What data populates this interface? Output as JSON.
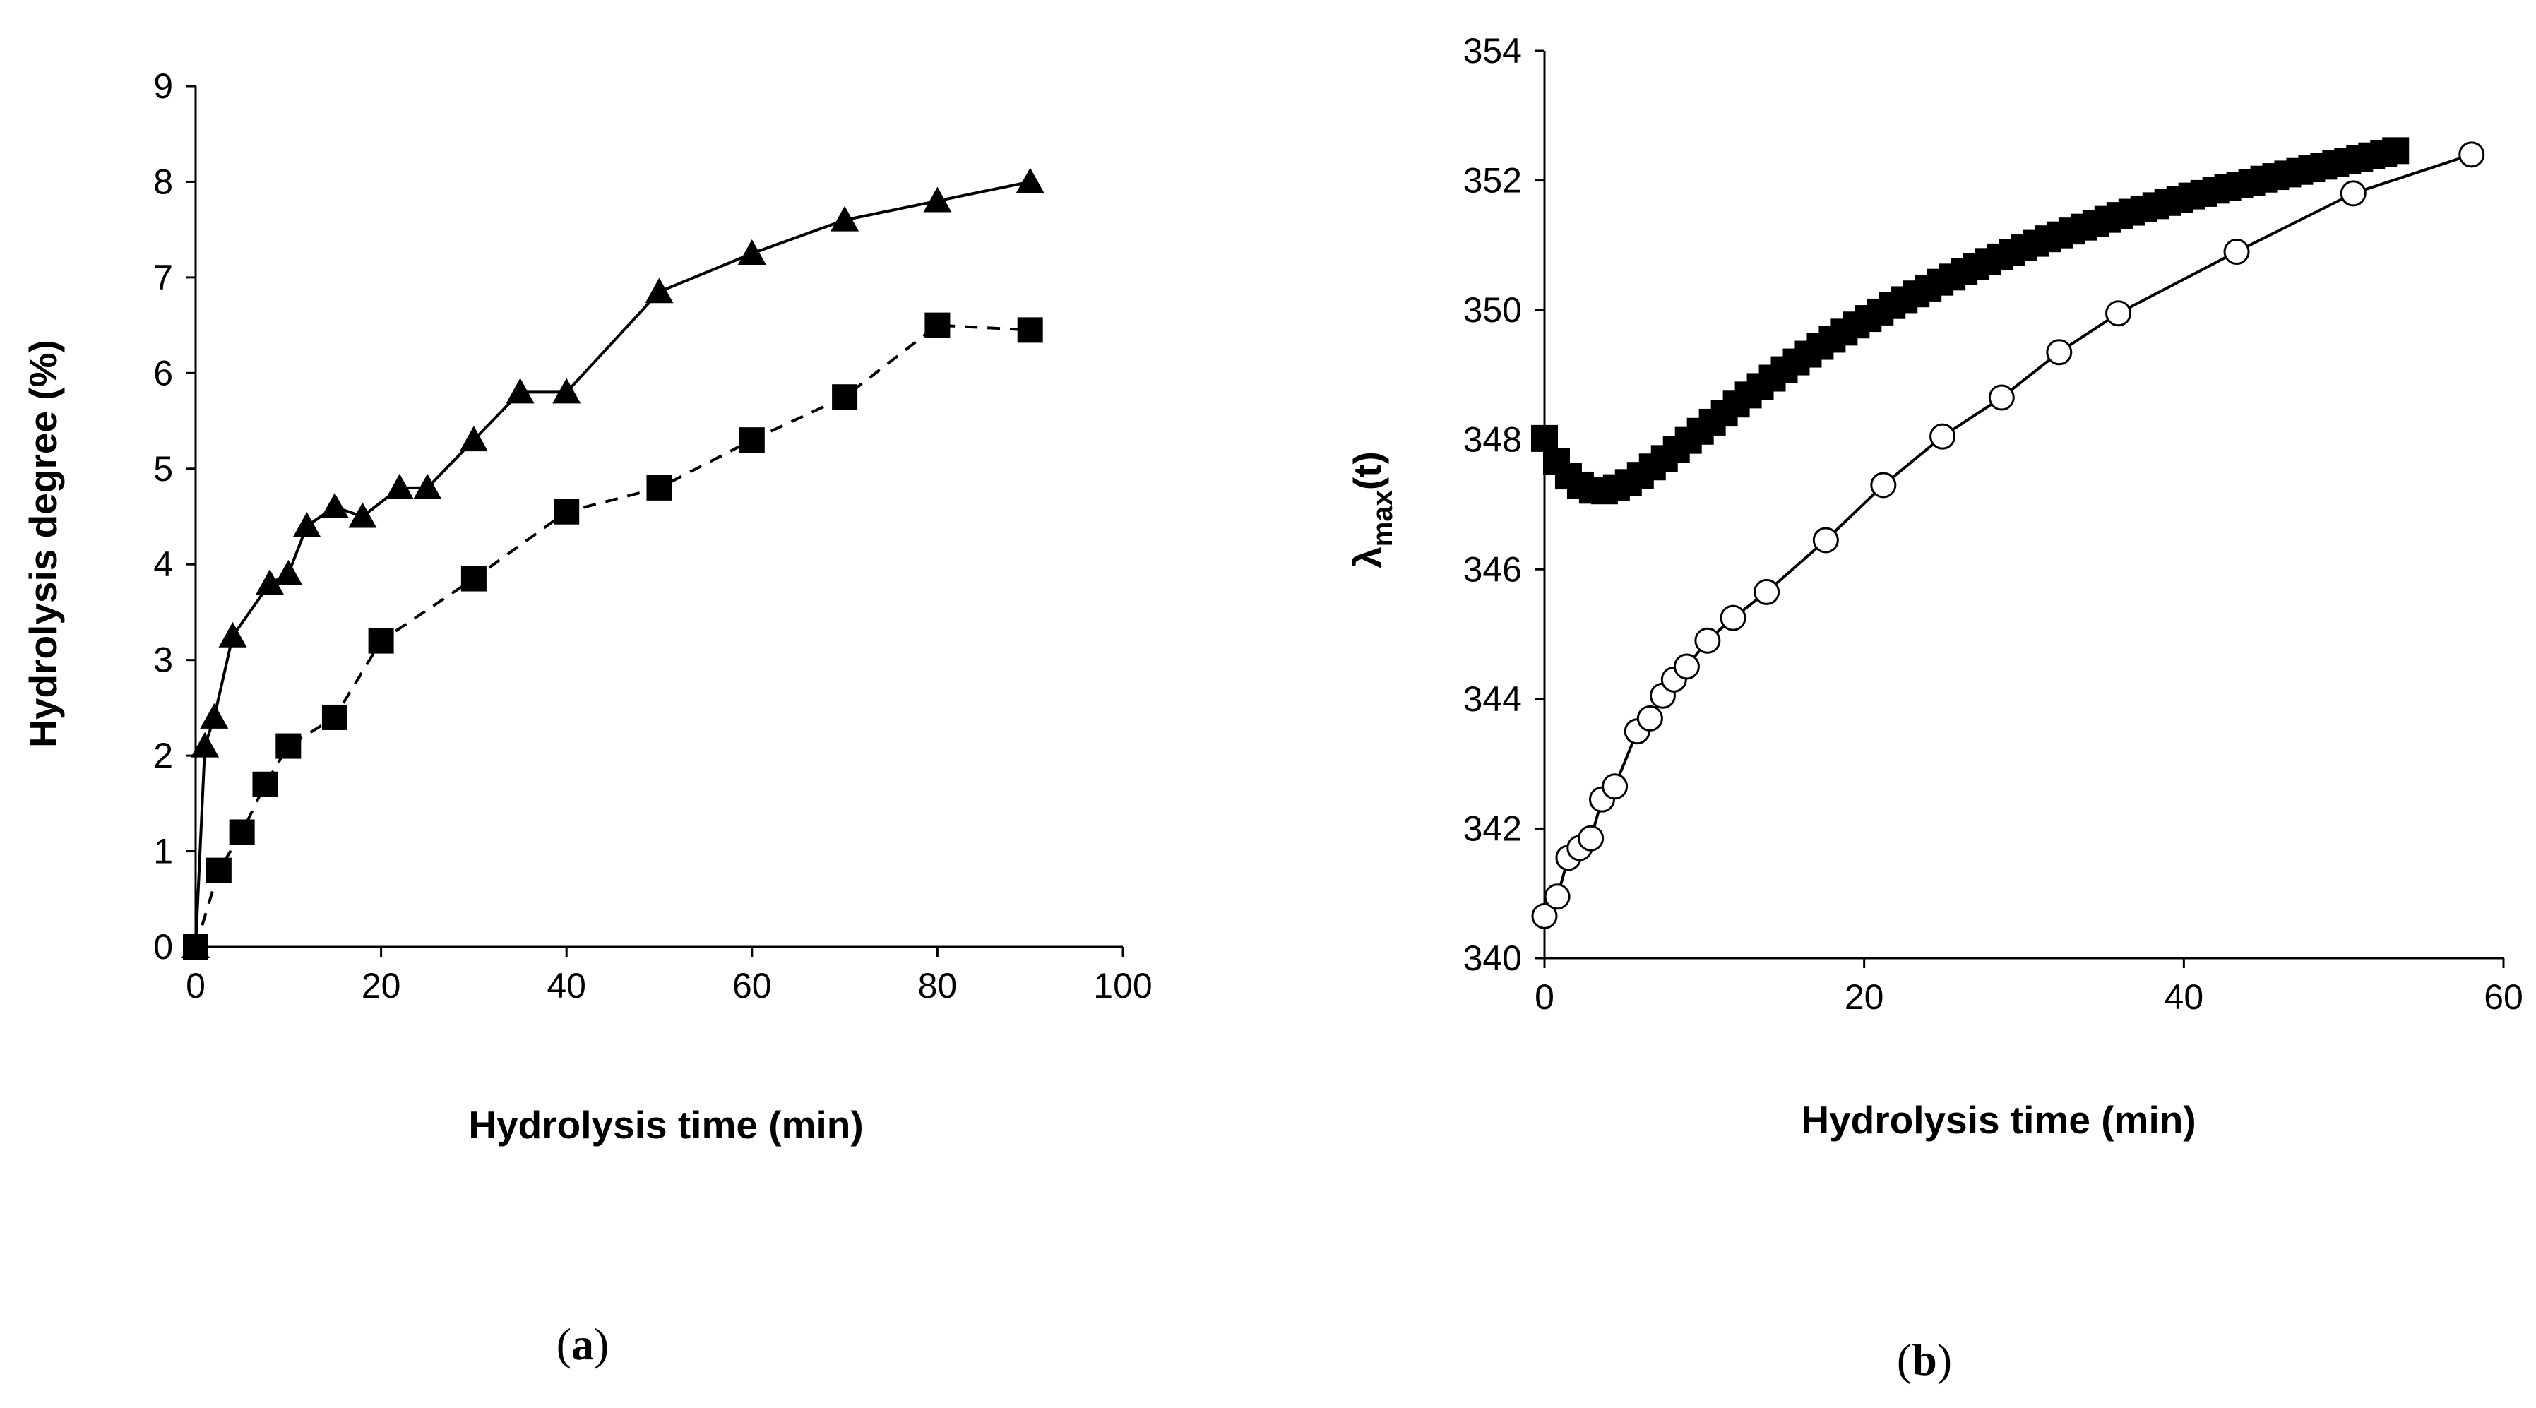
{
  "chart_data": [
    {
      "type": "line",
      "panel_label": "(a)",
      "panel_letter": "a",
      "xlabel": "Hydrolysis time (min)",
      "ylabel": "Hydrolysis degree (%)",
      "xlim": [
        0,
        100
      ],
      "ylim": [
        0,
        9
      ],
      "xticks": [
        0,
        20,
        40,
        60,
        80,
        100
      ],
      "yticks": [
        0,
        1,
        2,
        3,
        4,
        5,
        6,
        7,
        8,
        9
      ],
      "grid": false,
      "series": [
        {
          "name": "triangles",
          "marker": "triangle",
          "line": "solid",
          "x": [
            0,
            1,
            2,
            4,
            8,
            10,
            12,
            15,
            18,
            22,
            25,
            30,
            35,
            40,
            50,
            60,
            70,
            80,
            90
          ],
          "y": [
            0,
            2.1,
            2.4,
            3.25,
            3.8,
            3.9,
            4.4,
            4.6,
            4.5,
            4.8,
            4.8,
            5.3,
            5.8,
            5.8,
            6.85,
            7.25,
            7.6,
            7.8,
            8.0
          ]
        },
        {
          "name": "squares",
          "marker": "square",
          "line": "dashed",
          "x": [
            0,
            2.5,
            5,
            7.5,
            10,
            15,
            20,
            30,
            40,
            50,
            60,
            70,
            80,
            90
          ],
          "y": [
            0,
            0.8,
            1.2,
            1.7,
            2.1,
            2.4,
            3.2,
            3.85,
            4.55,
            4.8,
            5.3,
            5.75,
            6.5,
            6.45
          ]
        }
      ]
    },
    {
      "type": "scatter",
      "panel_label": "(b)",
      "panel_letter": "b",
      "xlabel": "Hydrolysis time (min)",
      "ylabel": "λmax(t)",
      "ylabel_symbol": "λ",
      "ylabel_subscript": "max",
      "ylabel_suffix": "(t)",
      "xlim": [
        0,
        60
      ],
      "ylim": [
        340,
        354
      ],
      "xticks": [
        0,
        20,
        40,
        60
      ],
      "yticks": [
        340,
        342,
        344,
        346,
        348,
        350,
        352,
        354
      ],
      "grid": false,
      "series": [
        {
          "name": "filled squares",
          "marker": "square",
          "line": "none",
          "x": [
            0,
            0.75,
            1.5,
            2.25,
            3,
            3.75,
            4.5,
            5.25,
            6,
            6.75,
            7.5,
            8.25,
            9,
            9.75,
            10.5,
            11.25,
            12,
            12.75,
            13.5,
            14.25,
            15,
            15.75,
            16.5,
            17.25,
            18,
            18.75,
            19.5,
            20.25,
            21,
            21.75,
            22.5,
            23.25,
            24,
            24.75,
            25.5,
            26.25,
            27,
            27.75,
            28.5,
            29.25,
            30,
            30.75,
            31.5,
            32.25,
            33,
            33.75,
            34.5,
            35.25,
            36,
            36.75,
            37.5,
            38.25,
            39,
            39.75,
            40.5,
            41.25,
            42,
            42.75,
            43.5,
            44.25,
            45,
            45.75,
            46.5,
            47.25,
            48,
            48.75,
            49.5,
            50.25,
            51,
            51.75,
            52.5,
            53.25
          ],
          "y": [
            348.02,
            347.67,
            347.44,
            347.3,
            347.22,
            347.21,
            347.26,
            347.34,
            347.45,
            347.58,
            347.71,
            347.85,
            347.99,
            348.13,
            348.27,
            348.41,
            348.55,
            348.69,
            348.82,
            348.95,
            349.08,
            349.2,
            349.32,
            349.44,
            349.55,
            349.66,
            349.77,
            349.87,
            349.97,
            350.07,
            350.16,
            350.25,
            350.34,
            350.43,
            350.51,
            350.59,
            350.67,
            350.75,
            350.82,
            350.89,
            350.96,
            351.03,
            351.1,
            351.16,
            351.22,
            351.28,
            351.34,
            351.4,
            351.46,
            351.51,
            351.56,
            351.61,
            351.66,
            351.71,
            351.76,
            351.8,
            351.85,
            351.89,
            351.93,
            351.97,
            352.02,
            352.06,
            352.1,
            352.14,
            352.18,
            352.22,
            352.26,
            352.3,
            352.34,
            352.38,
            352.42,
            352.46
          ]
        },
        {
          "name": "open circles",
          "marker": "circle-open",
          "line": "solid",
          "x": [
            0,
            0.8,
            1.5,
            2.2,
            2.9,
            3.6,
            4.4,
            5.8,
            6.6,
            7.4,
            8.1,
            8.9,
            10.2,
            11.8,
            13.9,
            17.6,
            21.2,
            24.9,
            28.6,
            32.2,
            35.9,
            43.3,
            50.6,
            58.0
          ],
          "y": [
            340.65,
            340.95,
            341.55,
            341.7,
            341.85,
            342.45,
            342.65,
            343.5,
            343.7,
            344.05,
            344.3,
            344.5,
            344.9,
            345.25,
            345.65,
            346.45,
            347.3,
            348.05,
            348.65,
            349.35,
            349.95,
            350.9,
            351.8,
            352.4
          ]
        }
      ]
    }
  ]
}
